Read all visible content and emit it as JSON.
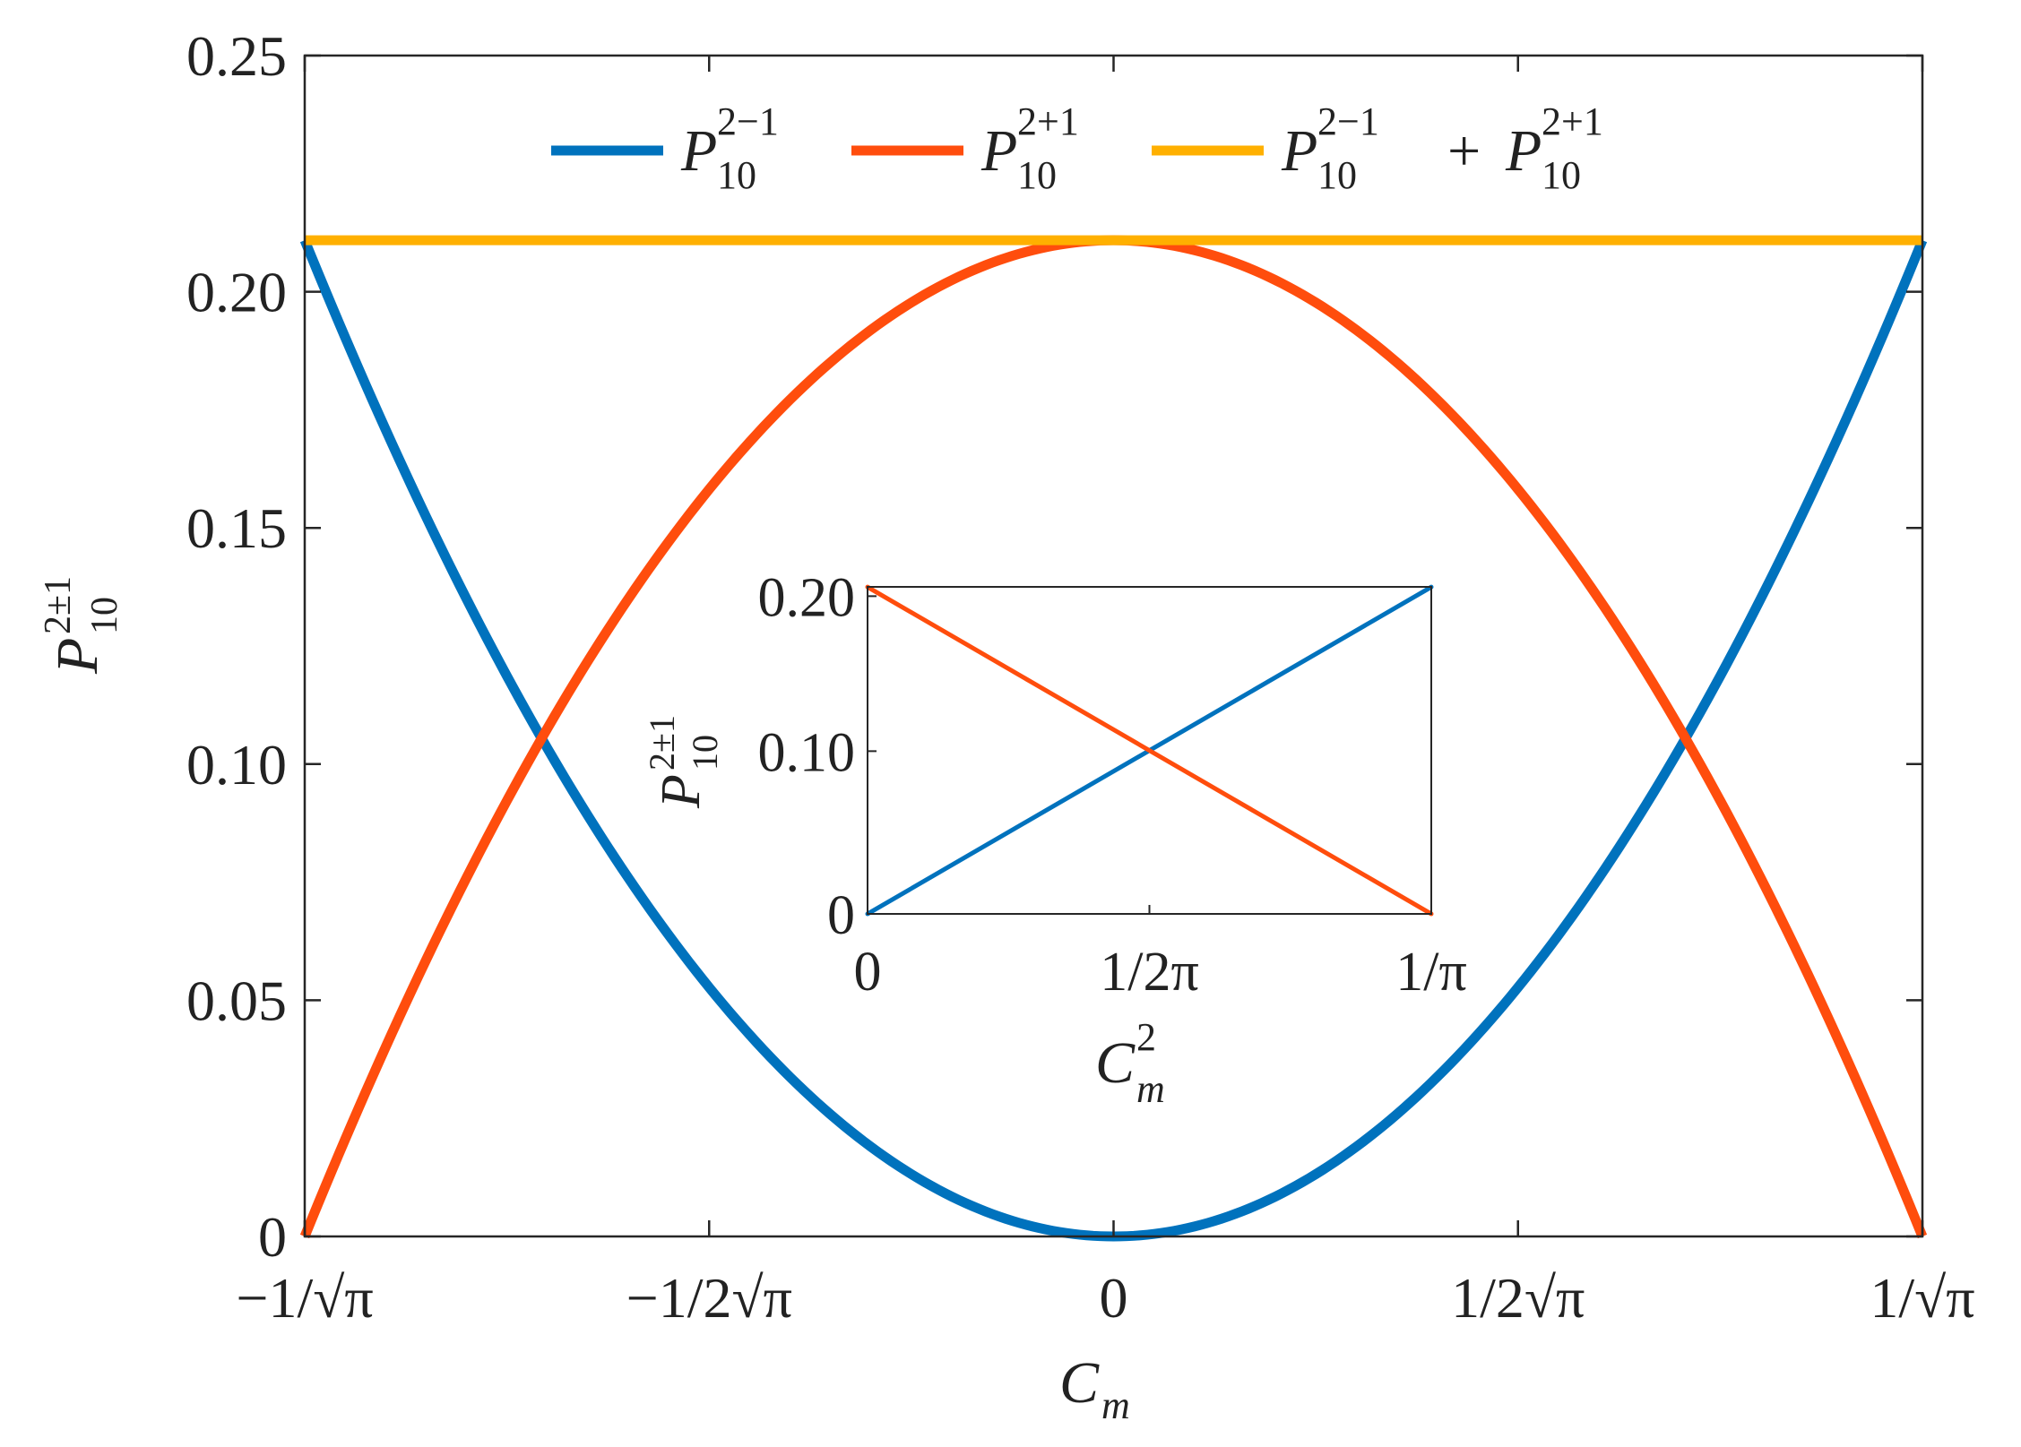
{
  "chart_data": [
    {
      "type": "line",
      "title": "",
      "x_domain": [
        -1,
        1
      ],
      "x_unit_note": "C_m in units of 1/sqrt(pi)",
      "x_ticks": [
        {
          "value": -1,
          "label": "−1/√π"
        },
        {
          "value": -0.5,
          "label": "−1/2√π"
        },
        {
          "value": 0,
          "label": "0"
        },
        {
          "value": 0.5,
          "label": "1/2√π"
        },
        {
          "value": 1,
          "label": "1/√π"
        }
      ],
      "xlabel": {
        "base": "C",
        "sub": "m"
      },
      "ylabel": {
        "base": "P",
        "sub": "10",
        "sup": "2±1"
      },
      "ylim": [
        0,
        0.25
      ],
      "y_ticks": [
        {
          "value": 0,
          "label": "0"
        },
        {
          "value": 0.05,
          "label": "0.05"
        },
        {
          "value": 0.1,
          "label": "0.10"
        },
        {
          "value": 0.15,
          "label": "0.15"
        },
        {
          "value": 0.2,
          "label": "0.20"
        },
        {
          "value": 0.25,
          "label": "0.25"
        }
      ],
      "legend_position": "top-center",
      "series": [
        {
          "legend": {
            "base": "P",
            "sub": "10",
            "sup": "2−1"
          },
          "color": "#0072BD",
          "x": [
            -1,
            -0.75,
            -0.5,
            -0.4,
            -0.25,
            0,
            0.25,
            0.4,
            0.5,
            0.75,
            1
          ],
          "values": [
            0.2109,
            0.1187,
            0.0527,
            0.0337,
            0.0132,
            0,
            0.0132,
            0.0337,
            0.0527,
            0.1187,
            0.2109
          ]
        },
        {
          "legend": {
            "base": "P",
            "sub": "10",
            "sup": "2+1"
          },
          "color": "#FF4D0D",
          "x": [
            -1,
            -0.75,
            -0.5,
            -0.4,
            -0.25,
            0,
            0.25,
            0.4,
            0.5,
            0.75,
            1
          ],
          "values": [
            0,
            0.0923,
            0.1582,
            0.1772,
            0.1977,
            0.2109,
            0.1977,
            0.1772,
            0.1582,
            0.0923,
            0
          ]
        },
        {
          "legend": {
            "base": "P",
            "sub": "10",
            "sup": "2−1",
            "plus": "+",
            "base2": "P",
            "sub2": "10",
            "sup2": "2+1"
          },
          "color": "#FFB000",
          "x": [
            -1,
            0,
            1
          ],
          "values": [
            0.2109,
            0.2109,
            0.2109
          ]
        }
      ]
    },
    {
      "type": "line",
      "title": "",
      "x_domain": [
        0,
        1
      ],
      "x_unit_note": "C_m^2 in units of 1/pi",
      "x_ticks": [
        {
          "value": 0,
          "label": "0"
        },
        {
          "value": 0.5,
          "label": "1/2π"
        },
        {
          "value": 1,
          "label": "1/π"
        }
      ],
      "xlabel": {
        "base": "C",
        "sub": "m",
        "sup": "2"
      },
      "ylabel": {
        "base": "P",
        "sub": "10",
        "sup": "2±1"
      },
      "ylim": [
        0,
        0.211
      ],
      "y_ticks": [
        {
          "value": 0,
          "label": "0"
        },
        {
          "value": 0.105,
          "label": "0.10"
        },
        {
          "value": 0.205,
          "label": "0.20"
        }
      ],
      "series": [
        {
          "color": "#0072BD",
          "x": [
            0,
            1
          ],
          "values": [
            0,
            0.2109
          ]
        },
        {
          "color": "#FF4D0D",
          "x": [
            0,
            1
          ],
          "values": [
            0.2109,
            0
          ]
        }
      ]
    }
  ]
}
